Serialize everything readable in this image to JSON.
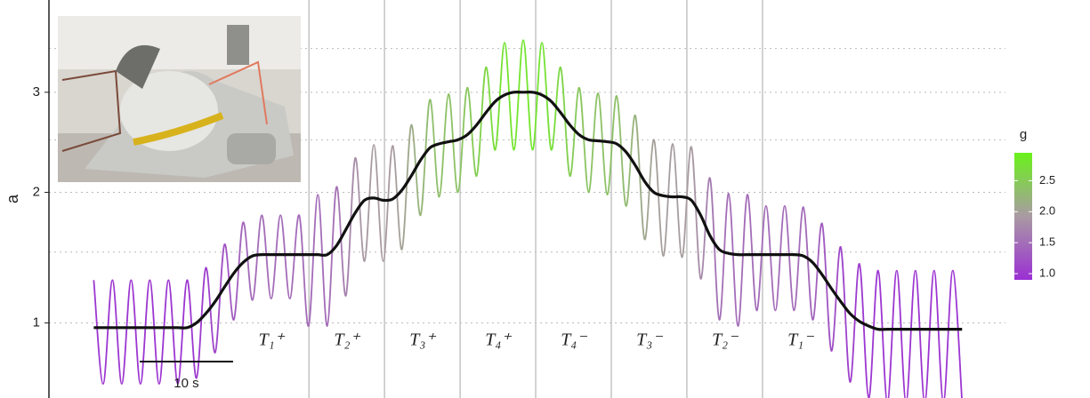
{
  "chart_data": {
    "type": "line",
    "y_label": "a",
    "yscale": "sqrt",
    "ylim": [
      0.58,
      4.1
    ],
    "yticks": [
      1,
      2,
      3
    ],
    "y_minor_grid": [
      1.5,
      2.5,
      3.5
    ],
    "xlim": [
      -4.8,
      106.7
    ],
    "x": [
      0,
      1,
      2,
      3,
      4,
      5,
      6,
      7,
      8,
      9,
      10,
      11,
      12,
      13,
      14,
      15,
      16,
      17,
      18,
      19,
      20,
      21,
      22,
      23,
      24,
      25,
      26,
      27,
      28,
      29,
      30,
      31,
      32,
      33,
      34,
      35,
      36,
      37,
      38,
      39,
      40,
      41,
      42,
      43,
      44,
      45,
      46,
      47,
      48,
      49,
      50,
      51,
      52,
      53,
      54,
      55,
      56,
      57,
      58,
      59,
      60,
      61,
      62,
      63,
      64,
      65,
      66,
      67,
      68,
      69,
      70,
      71,
      72,
      73,
      74,
      75,
      76,
      77,
      78,
      79,
      80,
      81,
      82,
      83,
      84,
      85,
      86,
      87,
      88,
      89,
      90,
      91,
      92,
      93
    ],
    "series": [
      {
        "color_by": "g",
        "values": [
          1.29,
          0.65,
          1.29,
          0.65,
          1.29,
          0.65,
          1.29,
          0.65,
          1.29,
          0.65,
          1.29,
          0.68,
          1.38,
          0.82,
          1.56,
          1.02,
          1.74,
          1.15,
          1.8,
          1.16,
          1.8,
          1.16,
          1.8,
          0.98,
          1.98,
          0.98,
          2.05,
          1.18,
          2.32,
          1.43,
          2.45,
          1.43,
          2.44,
          1.52,
          2.65,
          1.8,
          2.92,
          1.96,
          2.98,
          2.0,
          3.05,
          2.15,
          3.28,
          2.4,
          3.57,
          2.4,
          3.6,
          2.4,
          3.57,
          2.4,
          3.28,
          2.15,
          3.05,
          2.0,
          2.99,
          1.98,
          2.96,
          1.88,
          2.75,
          1.6,
          2.5,
          1.47,
          2.46,
          1.46,
          2.43,
          1.3,
          2.13,
          1.02,
          1.99,
          0.98,
          1.98,
          1.08,
          1.88,
          1.08,
          1.88,
          1.08,
          1.87,
          1.02,
          1.73,
          0.83,
          1.54,
          0.66,
          1.41,
          0.58,
          1.36,
          0.56,
          1.36,
          0.56,
          1.36,
          0.56,
          1.36,
          0.56,
          1.36,
          0.56
        ]
      },
      {
        "color": "#111111",
        "values": [
          0.97,
          0.97,
          0.97,
          0.97,
          0.97,
          0.97,
          0.97,
          0.97,
          0.97,
          0.97,
          0.97,
          1.0,
          1.06,
          1.14,
          1.24,
          1.34,
          1.42,
          1.47,
          1.48,
          1.48,
          1.48,
          1.48,
          1.48,
          1.48,
          1.48,
          1.48,
          1.55,
          1.68,
          1.82,
          1.93,
          1.95,
          1.93,
          1.94,
          2.02,
          2.15,
          2.3,
          2.42,
          2.46,
          2.48,
          2.5,
          2.55,
          2.65,
          2.78,
          2.9,
          2.97,
          3.0,
          3.0,
          3.0,
          2.97,
          2.9,
          2.78,
          2.65,
          2.55,
          2.5,
          2.49,
          2.48,
          2.46,
          2.38,
          2.25,
          2.1,
          2.0,
          1.97,
          1.96,
          1.96,
          1.93,
          1.8,
          1.63,
          1.52,
          1.49,
          1.48,
          1.48,
          1.48,
          1.48,
          1.48,
          1.48,
          1.48,
          1.47,
          1.42,
          1.33,
          1.23,
          1.14,
          1.06,
          1.01,
          0.98,
          0.96,
          0.96,
          0.96,
          0.96,
          0.96,
          0.96,
          0.96,
          0.96,
          0.96,
          0.96
        ]
      }
    ],
    "g": [
      0.97,
      0.97,
      0.97,
      0.97,
      0.97,
      0.97,
      0.97,
      0.97,
      0.97,
      0.97,
      0.97,
      1.0,
      1.06,
      1.14,
      1.24,
      1.34,
      1.42,
      1.47,
      1.48,
      1.48,
      1.48,
      1.48,
      1.48,
      1.48,
      1.48,
      1.48,
      1.55,
      1.68,
      1.82,
      1.93,
      1.95,
      1.93,
      1.94,
      2.02,
      2.12,
      2.24,
      2.34,
      2.37,
      2.38,
      2.4,
      2.44,
      2.52,
      2.62,
      2.72,
      2.78,
      2.8,
      2.8,
      2.8,
      2.78,
      2.72,
      2.62,
      2.52,
      2.44,
      2.4,
      2.39,
      2.38,
      2.37,
      2.3,
      2.2,
      2.08,
      2.0,
      1.97,
      1.96,
      1.96,
      1.93,
      1.8,
      1.63,
      1.52,
      1.49,
      1.48,
      1.48,
      1.48,
      1.48,
      1.48,
      1.48,
      1.48,
      1.47,
      1.42,
      1.33,
      1.23,
      1.14,
      1.06,
      1.01,
      0.98,
      0.96,
      0.96,
      0.96,
      0.96,
      0.96,
      0.96,
      0.96,
      0.96,
      0.96,
      0.96
    ],
    "colorscale": {
      "title": "g",
      "lim": [
        0.9,
        2.95
      ],
      "ticks": [
        {
          "value": 1,
          "label": "1.0"
        },
        1.5,
        {
          "value": 2,
          "label": "2.0"
        },
        2.5
      ],
      "colors": [
        "#9b2fd4",
        "#a99aa3",
        "#6af21a"
      ]
    },
    "phases": {
      "boundaries": [
        23.05,
        31.14,
        39.24,
        47.33,
        55.43,
        63.52,
        71.62
      ],
      "labels": [
        "T₁⁺",
        "T₂⁺",
        "T₃⁺",
        "T₄⁺",
        "T₄⁻",
        "T₃⁻",
        "T₂⁻",
        "T₁⁻"
      ]
    },
    "scalebar": {
      "length": 10,
      "label": "10 s"
    }
  }
}
